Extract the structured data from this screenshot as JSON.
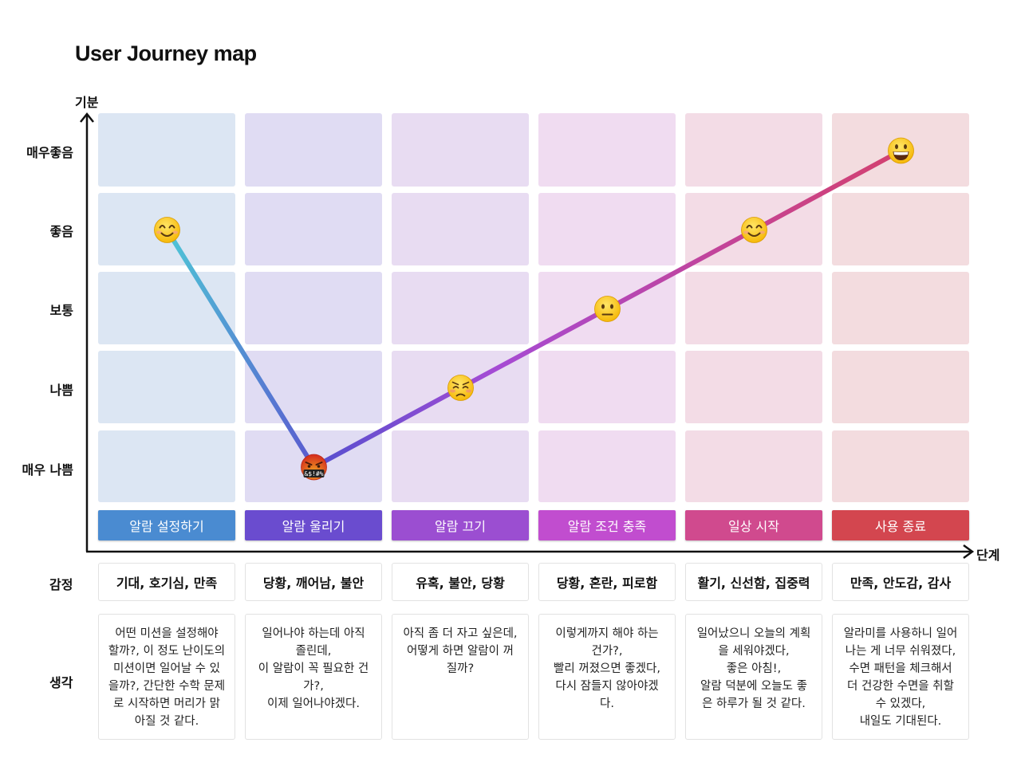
{
  "title": "User Journey map",
  "y_axis": {
    "label": "기분",
    "levels": [
      "매우좋음",
      "좋음",
      "보통",
      "나쁨",
      "매우 나쁨"
    ]
  },
  "x_axis": {
    "label": "단계"
  },
  "row_labels": {
    "emotion": "감정",
    "thought": "생각"
  },
  "colors": {
    "cell_bg": [
      "#dce6f3",
      "#e0dcf3",
      "#e8dcf2",
      "#f0dcf1",
      "#f3dce6",
      "#f3dcdf"
    ],
    "stage_bg": [
      "#4a8bd1",
      "#6a4ccf",
      "#9b4ed1",
      "#c14dcf",
      "#d04a8e",
      "#d3464f"
    ],
    "line_gradient": [
      "#4ec6d6",
      "#5b4fcf",
      "#a64bd4",
      "#c2449a",
      "#d3416f"
    ]
  },
  "stages": [
    {
      "name": "알람 설정하기",
      "mood_level": "좋음",
      "face": "smiling-face",
      "emotion": "기대, 호기심, 만족",
      "thought": "어떤 미션을 설정해야\n할까?, 이 정도 난이도의\n미션이면 일어날 수 있\n을까?, 간단한 수학 문제\n로 시작하면 머리가 맑\n아질 것 같다."
    },
    {
      "name": "알람 울리기",
      "mood_level": "매우 나쁨",
      "face": "cursing-face",
      "face_text": "&$!#%",
      "emotion": "당황, 깨어남, 불안",
      "thought": "일어나야 하는데 아직\n졸린데,\n이 알람이 꼭 필요한 건\n가?,\n이제 일어나야겠다."
    },
    {
      "name": "알람 끄기",
      "mood_level": "나쁨",
      "face": "weary-face",
      "emotion": "유혹, 불안, 당황",
      "thought": "아직 좀 더 자고 싶은데,\n어떻게 하면 알람이 꺼\n질까?"
    },
    {
      "name": "알람 조건 충족",
      "mood_level": "보통",
      "face": "neutral-face",
      "emotion": "당황, 혼란, 피로함",
      "thought": "이렇게까지 해야 하는\n건가?,\n빨리 꺼졌으면 좋겠다,\n다시 잠들지 않아야겠\n다."
    },
    {
      "name": "일상 시작",
      "mood_level": "좋음",
      "face": "smiling-face",
      "emotion": "활기, 신선함, 집중력",
      "thought": "일어났으니 오늘의 계획\n을 세워야겠다,\n좋은 아침!,\n알람 덕분에 오늘도 좋\n은 하루가 될 것 같다."
    },
    {
      "name": "사용 종료",
      "mood_level": "매우좋음",
      "face": "grinning-face",
      "emotion": "만족, 안도감, 감사",
      "thought": "알라미를 사용하니 일어\n나는 게 너무 쉬워졌다,\n수면 패턴을 체크해서\n더 건강한 수면을 취할\n수 있겠다,\n내일도 기대된다."
    }
  ]
}
